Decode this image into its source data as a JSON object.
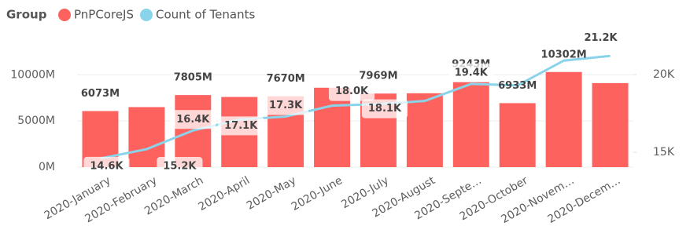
{
  "chart_data": {
    "type": "bar_line",
    "legend_title": "Group",
    "categories": [
      "2020-January",
      "2020-February",
      "2020-March",
      "2020-April",
      "2020-May",
      "2020-June",
      "2020-July",
      "2020-August",
      "2020-Septe…",
      "2020-October",
      "2020-Novem…",
      "2020-Decem…"
    ],
    "series": [
      {
        "name": "PnPCoreJS",
        "color": "#fd625e",
        "type": "bar",
        "values": [
          6073,
          6500,
          7805,
          7600,
          7670,
          8600,
          7969,
          8000,
          9243,
          6933,
          10302,
          9100
        ],
        "value_labels": [
          "6073M",
          null,
          "7805M",
          null,
          "7670M",
          null,
          "7969M",
          null,
          "9243M",
          "6933M",
          "10302M",
          null
        ]
      },
      {
        "name": "Count of Tenants",
        "color": "#8ad4eb",
        "type": "line",
        "axis": "y2",
        "values": [
          14600,
          15200,
          16400,
          17100,
          17300,
          18000,
          18100,
          18300,
          19400,
          19300,
          20900,
          21200
        ],
        "value_labels": [
          "14.6K",
          "15.2K",
          "16.4K",
          "17.1K",
          "17.3K",
          "18.0K",
          "18.1K",
          null,
          "19.4K",
          null,
          null,
          "21.2K"
        ]
      }
    ],
    "ylim": [
      0,
      13000
    ],
    "yticks": [
      {
        "value": 0,
        "label": "0M"
      },
      {
        "value": 5000,
        "label": "5000M"
      },
      {
        "value": 10000,
        "label": "10000M"
      }
    ],
    "y2lim": [
      14040,
      21770
    ],
    "y2ticks": [
      {
        "value": 15000,
        "label": "15K"
      },
      {
        "value": 20000,
        "label": "20K"
      }
    ]
  }
}
